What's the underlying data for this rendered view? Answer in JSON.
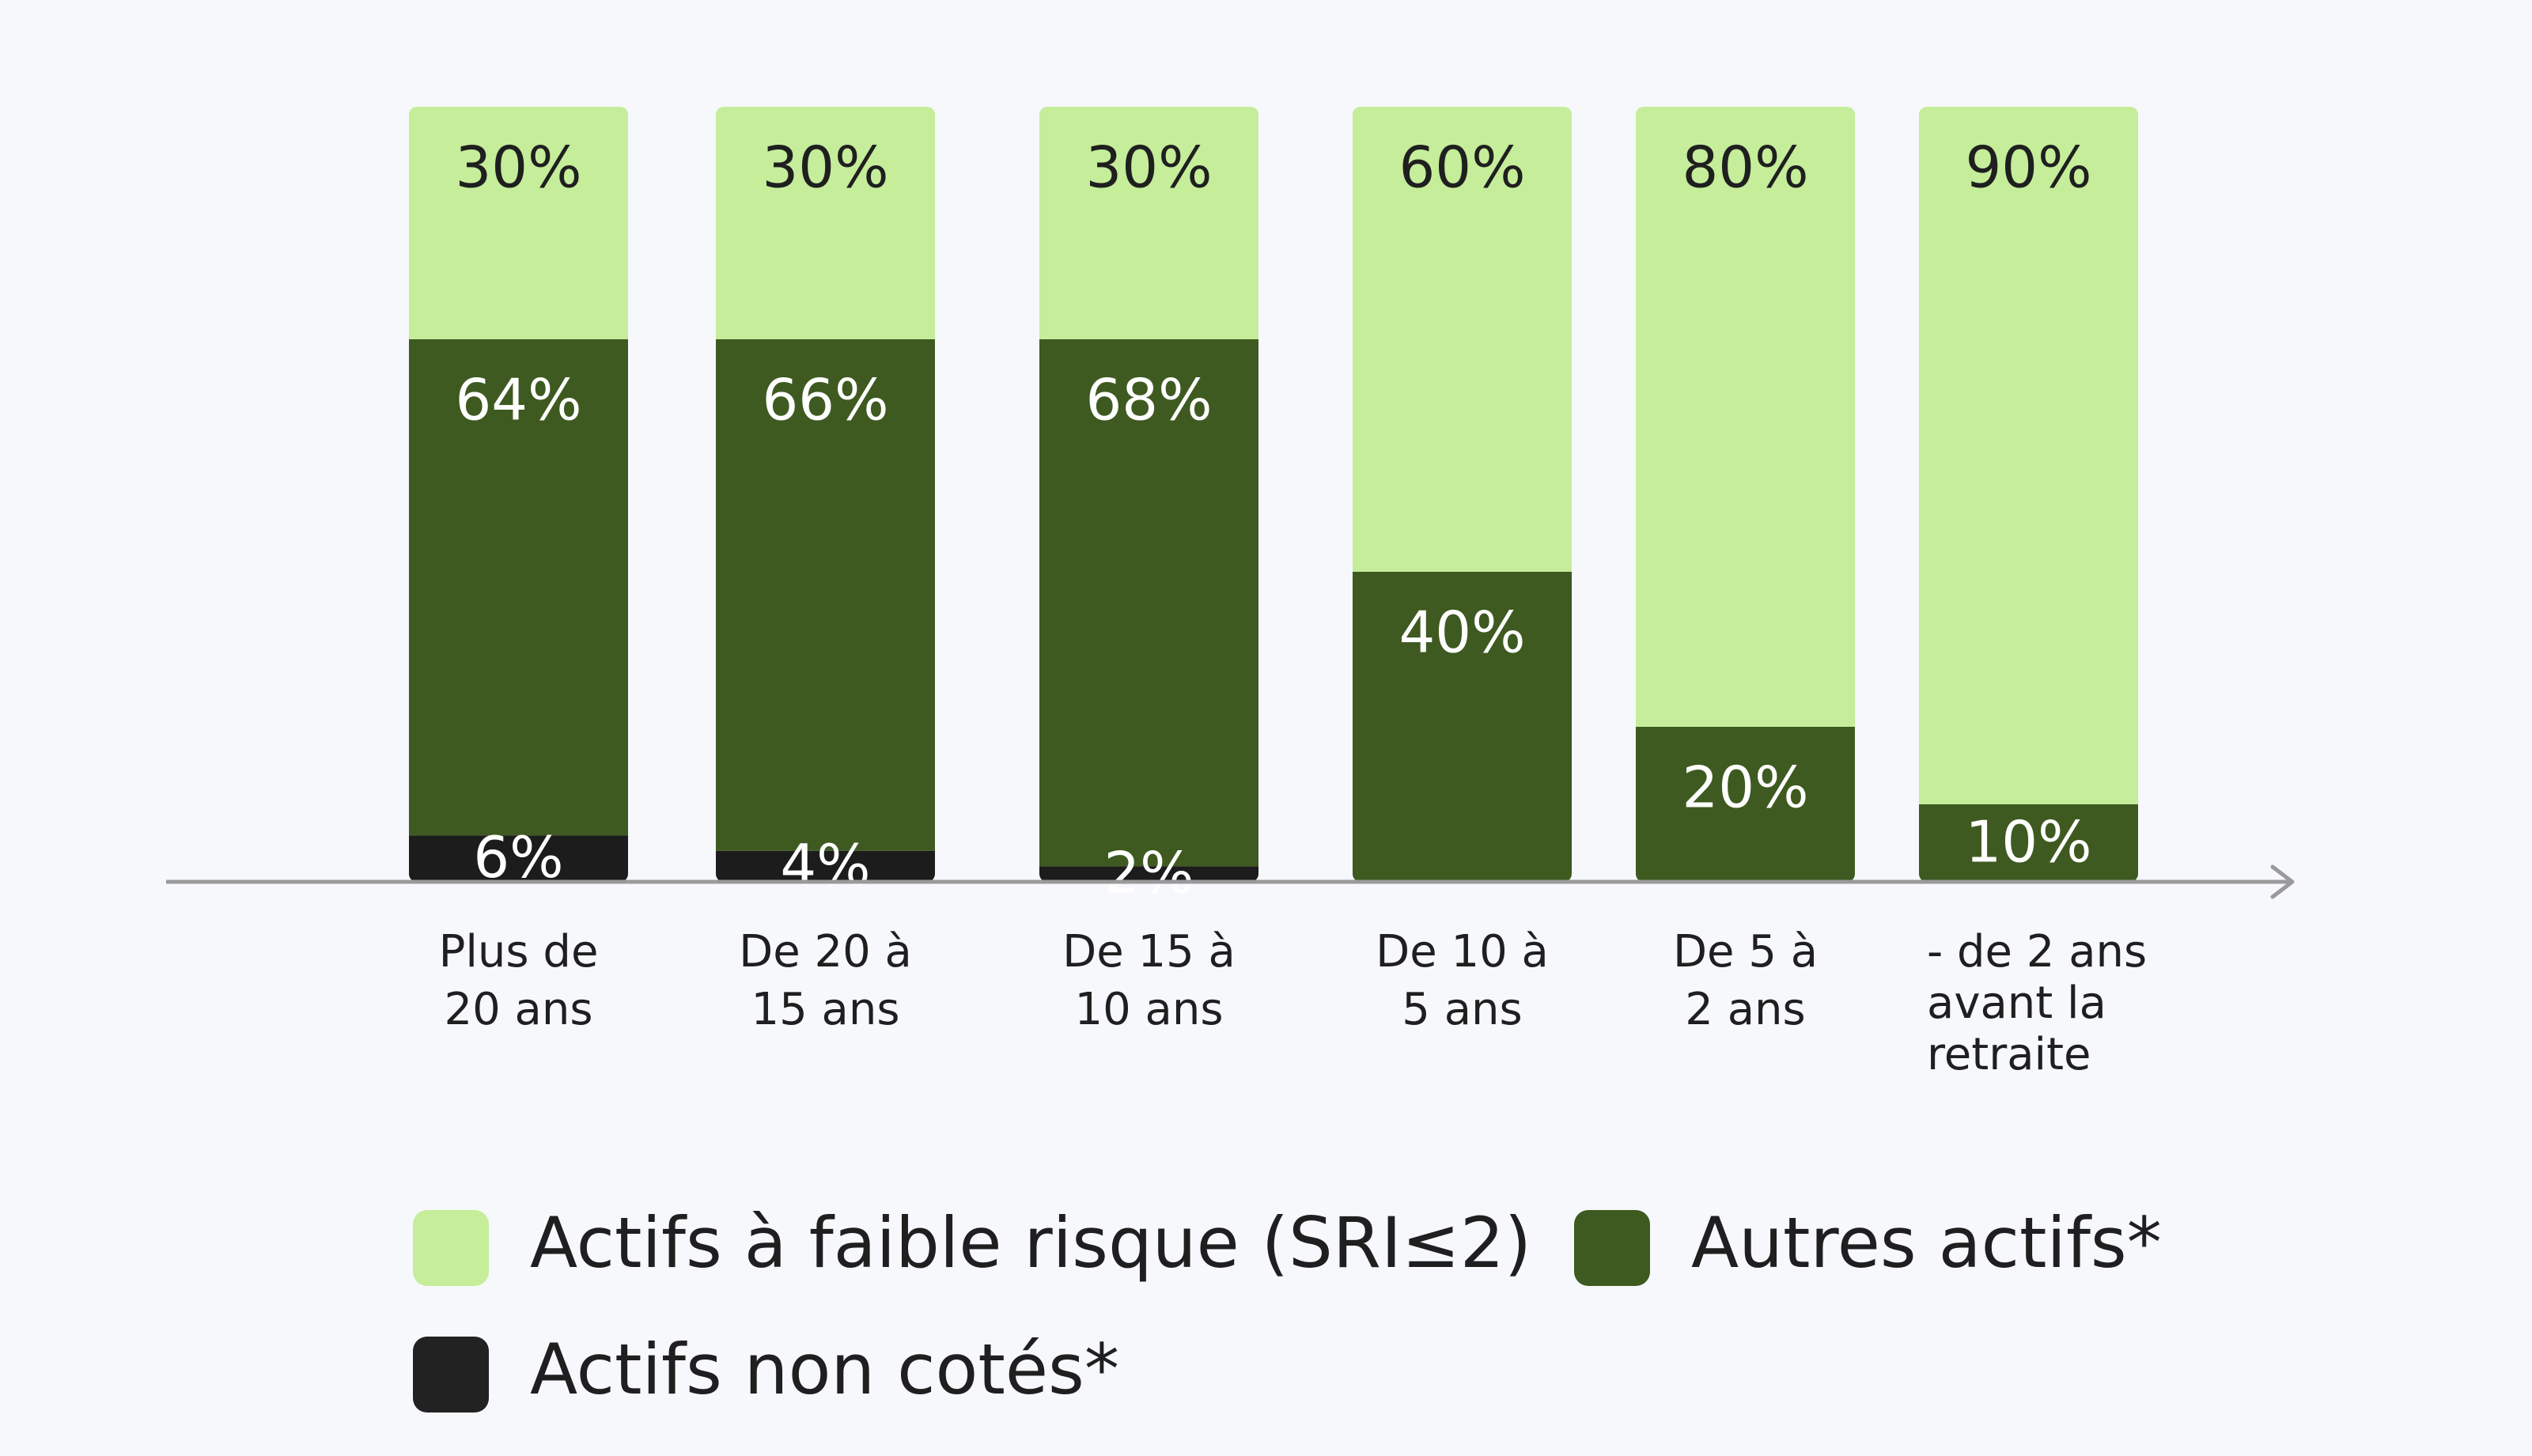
{
  "chart_data": {
    "type": "bar",
    "stacked": true,
    "categories": [
      "Plus de 20 ans",
      "De 20 à 15 ans",
      "De 15 à 10 ans",
      "De 10 à 5 ans",
      "De 5 à 2 ans",
      "- de 2 ans avant la retraite"
    ],
    "category_lines": [
      [
        "Plus de",
        "20 ans"
      ],
      [
        "De 20 à",
        "15 ans"
      ],
      [
        "De 15 à",
        "10 ans"
      ],
      [
        "De 10 à",
        "5 ans"
      ],
      [
        "De 5 à",
        "2 ans"
      ],
      [
        "- de 2 ans",
        "avant la",
        "retraite"
      ]
    ],
    "series": [
      {
        "name": "Actifs non cotés*",
        "color": "#1c1c1c",
        "label_color": "#ffffff",
        "values": [
          6,
          4,
          2,
          0,
          0,
          0
        ]
      },
      {
        "name": "Autres actifs*",
        "color": "#3e5a20",
        "label_color": "#ffffff",
        "values": [
          64,
          66,
          68,
          40,
          20,
          10
        ]
      },
      {
        "name": "Actifs à faible risque (SRI≤2)",
        "color": "#c5ed9a",
        "label_color": "#1f1f1f",
        "values": [
          30,
          30,
          30,
          60,
          80,
          90
        ]
      }
    ],
    "value_suffix": "%",
    "ylim": [
      0,
      100
    ],
    "grid": false,
    "legend_position": "bottom",
    "legend": [
      {
        "name": "Actifs à faible risque (SRI≤2)",
        "color": "#c5ed9a"
      },
      {
        "name": "Autres actifs*",
        "color": "#3e5a20"
      },
      {
        "name": "Actifs non cotés*",
        "color": "#222222"
      }
    ],
    "axis_color": "#9a9a9a"
  }
}
